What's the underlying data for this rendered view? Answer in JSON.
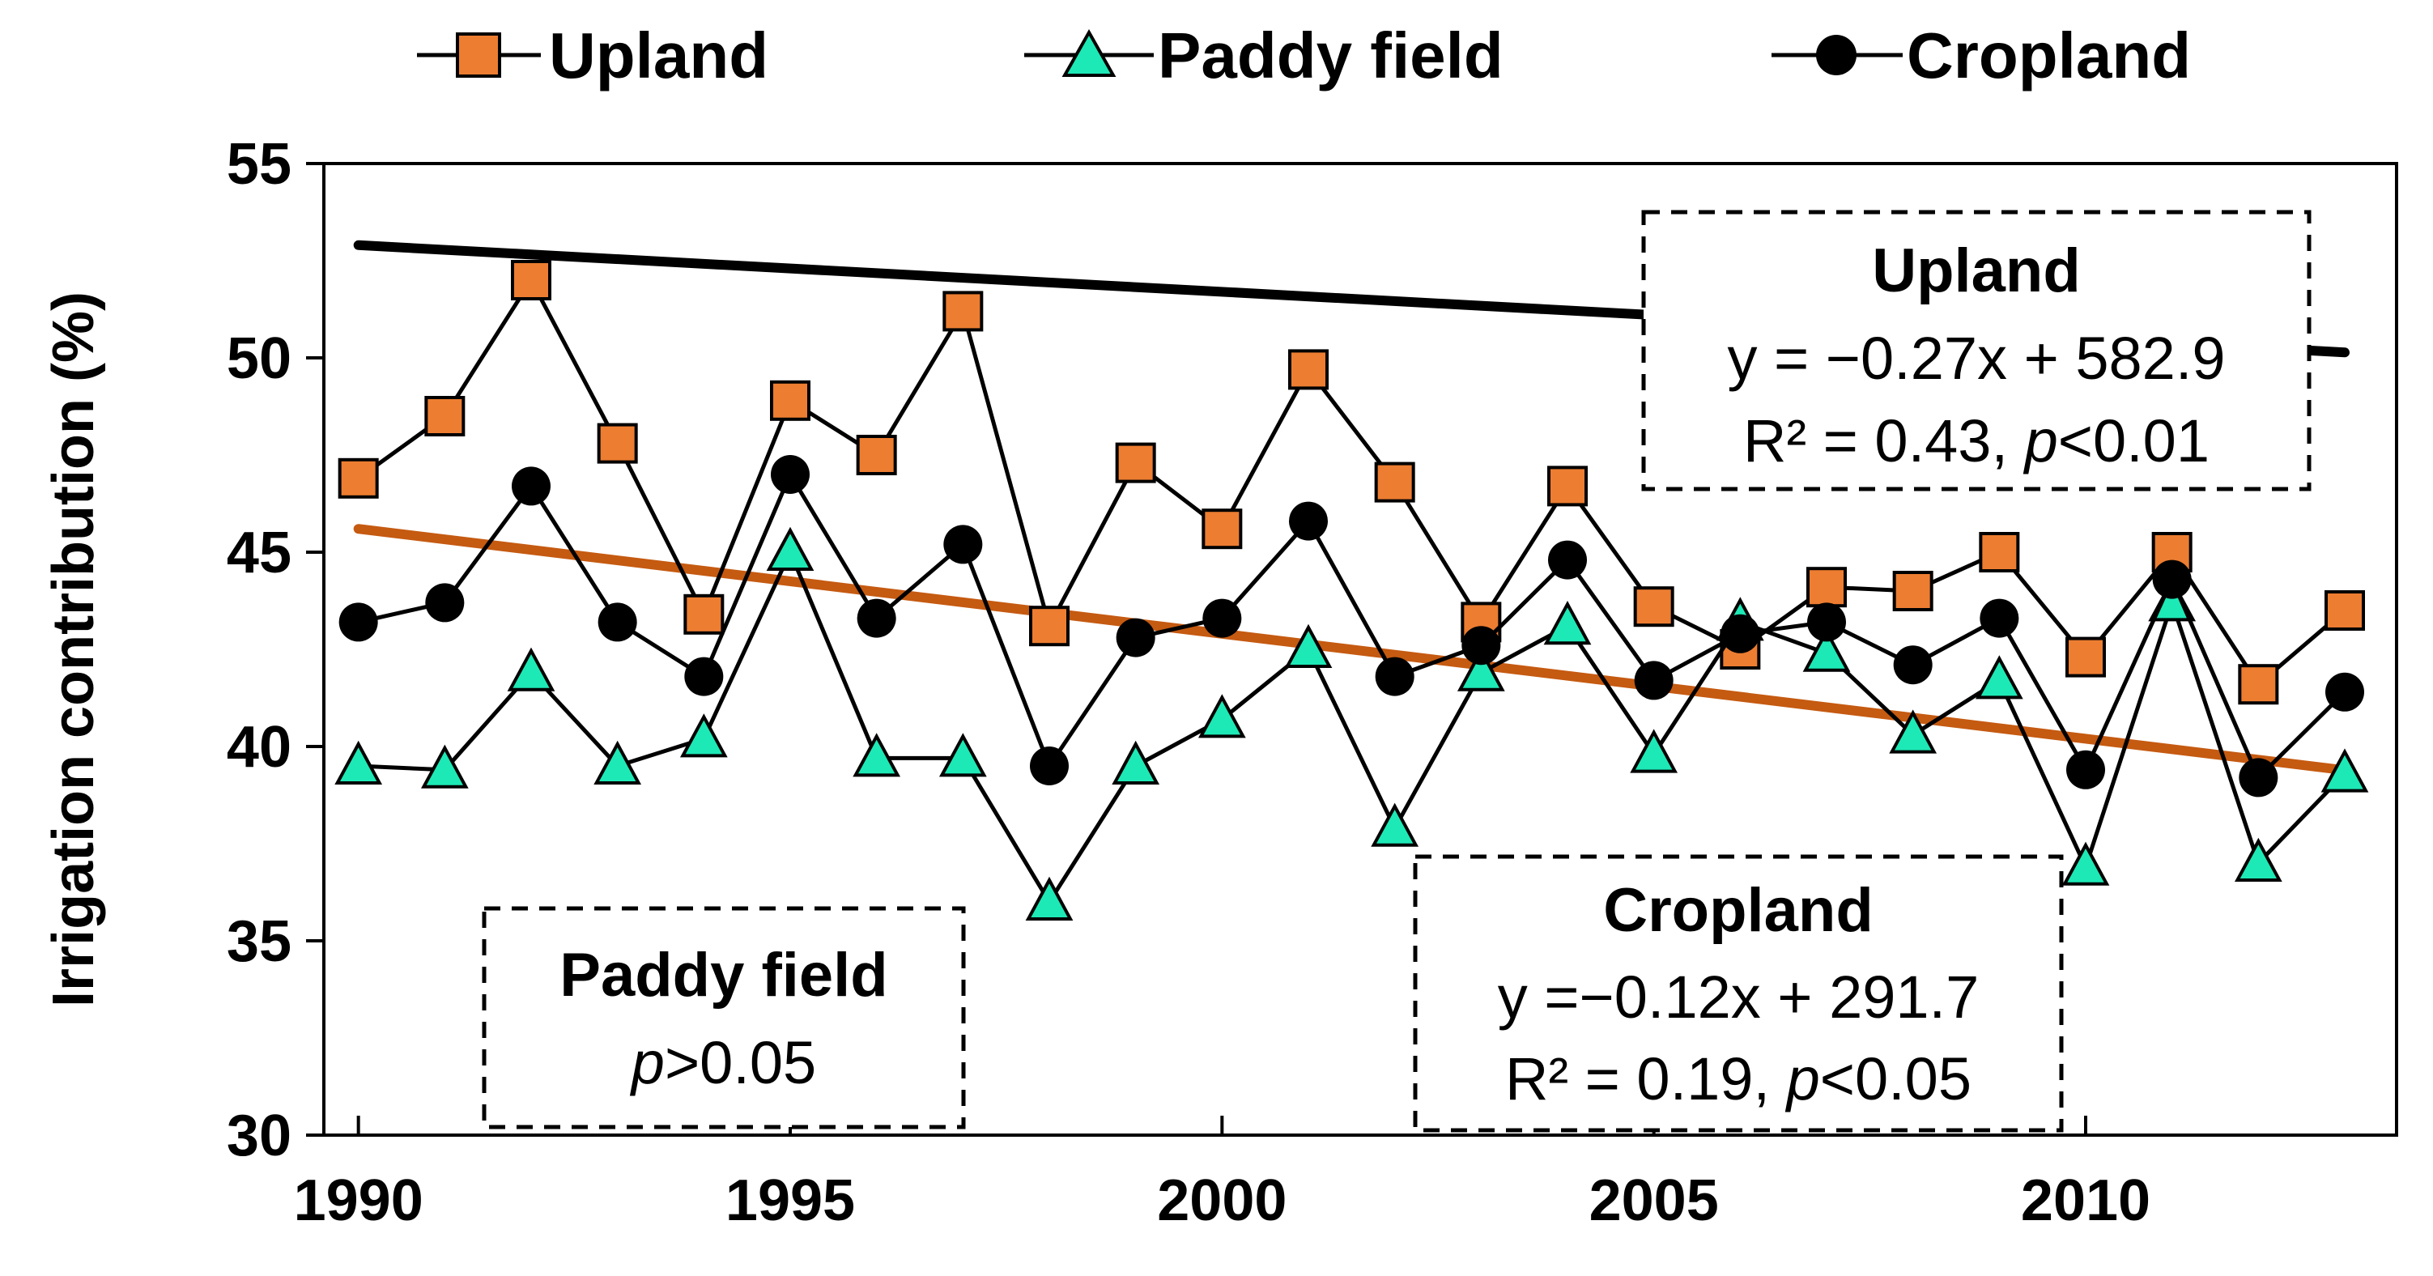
{
  "chart_data": {
    "type": "line",
    "title": "",
    "xlabel": "",
    "ylabel": "Irrigation contribution (%)",
    "xlim": [
      1989.6,
      2013.6
    ],
    "ylim": [
      30,
      55
    ],
    "x_ticks": [
      1990,
      1995,
      2000,
      2005,
      2010
    ],
    "y_ticks": [
      30,
      35,
      40,
      45,
      50,
      55
    ],
    "x_tick_labels": [
      "1990",
      "1995",
      "2000",
      "2005",
      "2010"
    ],
    "y_tick_labels": [
      "30",
      "35",
      "40",
      "45",
      "50",
      "55"
    ],
    "legend_position": "top",
    "x": [
      1990,
      1991,
      1992,
      1993,
      1994,
      1995,
      1996,
      1997,
      1998,
      1999,
      2000,
      2001,
      2002,
      2003,
      2004,
      2005,
      2006,
      2007,
      2008,
      2009,
      2010,
      2011,
      2012,
      2013
    ],
    "series": [
      {
        "name": "Upland",
        "marker": "square",
        "color": "#ed7d31",
        "values": [
          46.9,
          48.5,
          52.0,
          47.8,
          43.4,
          48.9,
          47.5,
          51.2,
          43.1,
          47.3,
          45.6,
          49.7,
          46.8,
          43.2,
          46.7,
          43.6,
          42.5,
          44.1,
          44.0,
          45.0,
          42.3,
          45.0,
          41.6,
          43.5
        ]
      },
      {
        "name": "Paddy field",
        "marker": "triangle",
        "color": "#1de9b6",
        "values": [
          39.5,
          39.4,
          41.9,
          39.5,
          40.2,
          45.0,
          39.7,
          39.7,
          36.0,
          39.5,
          40.7,
          42.5,
          37.9,
          41.9,
          43.1,
          39.8,
          43.2,
          42.4,
          40.3,
          41.7,
          36.9,
          43.7,
          37.0,
          39.3
        ]
      },
      {
        "name": "Cropland",
        "marker": "circle",
        "color": "#000000",
        "values": [
          43.2,
          43.7,
          46.7,
          43.2,
          41.8,
          47.0,
          43.3,
          45.2,
          39.5,
          42.8,
          43.3,
          45.8,
          41.8,
          42.6,
          44.8,
          41.7,
          42.9,
          43.2,
          42.1,
          43.3,
          39.4,
          44.3,
          39.2,
          41.4
        ]
      }
    ],
    "trendlines": [
      {
        "name": "Upland",
        "slope": -0.27,
        "intercept": 582.9,
        "color": "#c55a11",
        "x_range": [
          1990,
          2013
        ]
      },
      {
        "name": "Cropland",
        "slope": -0.12,
        "intercept": 291.7,
        "color": "#000000",
        "x_range": [
          1990,
          2013
        ]
      }
    ],
    "annotations": {
      "upland": {
        "title": "Upland",
        "equation": "y = −0.27x + 582.9",
        "r2": "R² = 0.43, ",
        "p_symbol": "p",
        "p_value": "<0.01"
      },
      "cropland": {
        "title": "Cropland",
        "equation": "y =−0.12x + 291.7",
        "r2": "R² = 0.19, ",
        "p_symbol": "p",
        "p_value": "<0.05"
      },
      "paddy": {
        "title": "Paddy field",
        "p_symbol": "p",
        "p_value": ">0.05"
      }
    }
  }
}
